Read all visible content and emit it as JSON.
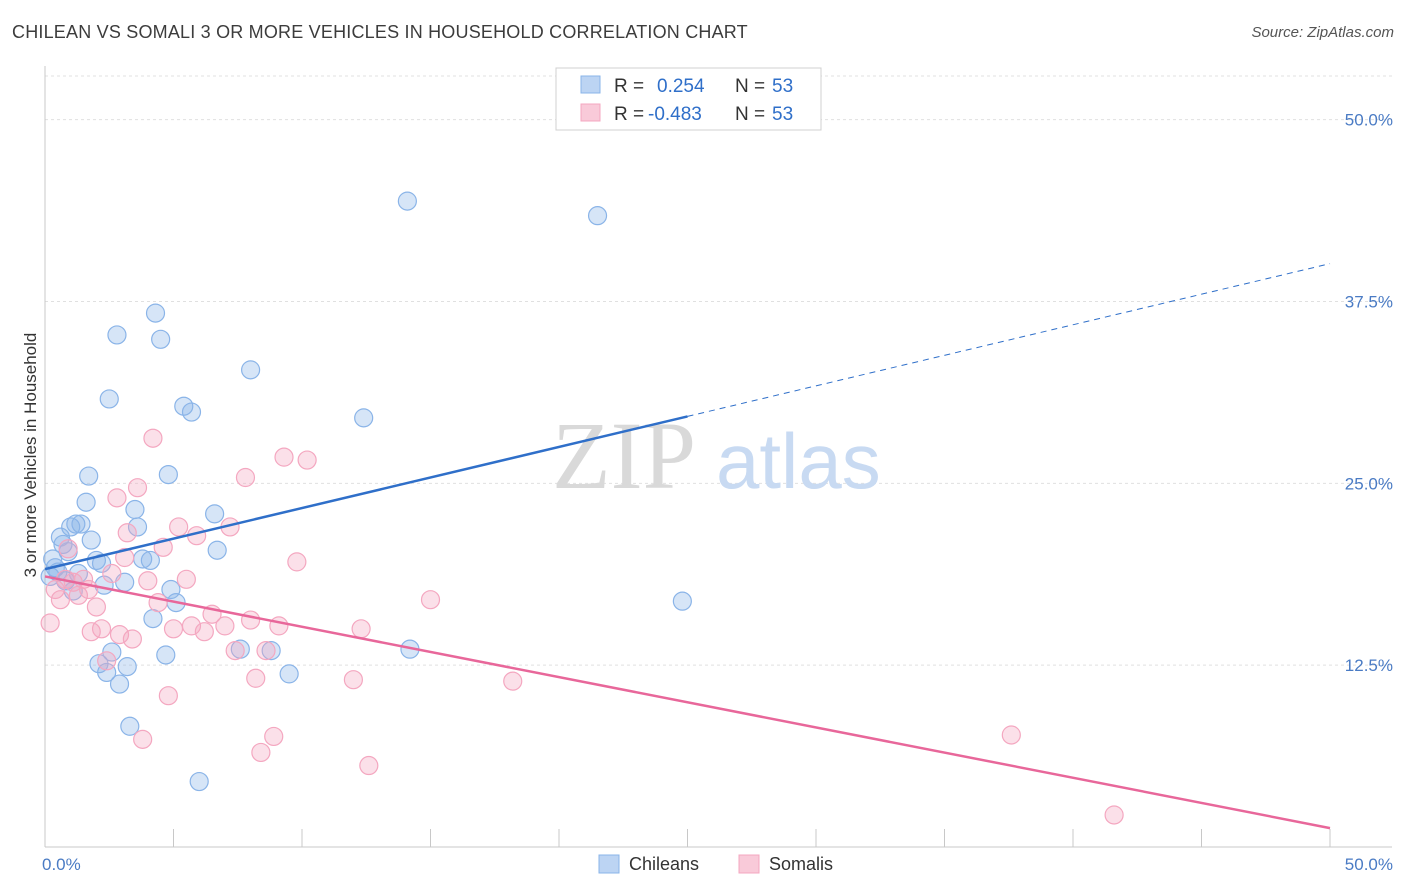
{
  "title": "CHILEAN VS SOMALI 3 OR MORE VEHICLES IN HOUSEHOLD CORRELATION CHART",
  "source": "Source: ZipAtlas.com",
  "watermark": {
    "zip": "ZIP",
    "atlas": "atlas"
  },
  "chart_data": {
    "type": "scatter",
    "ylabel": "3 or more Vehicles in Household",
    "xlim": [
      0,
      50
    ],
    "ylim": [
      0,
      53
    ],
    "x_tick_labels": [
      "0.0%",
      "50.0%"
    ],
    "y_ticks": [
      12.5,
      25.0,
      37.5,
      50.0
    ],
    "y_tick_labels": [
      "12.5%",
      "25.0%",
      "37.5%",
      "50.0%"
    ],
    "grid": true,
    "legend_placement": "top-center",
    "stats": [
      {
        "r_label": "R =",
        "r_value": "0.254",
        "n_label": "N =",
        "n_value": "53"
      },
      {
        "r_label": "R =",
        "r_value": "-0.483",
        "n_label": "N =",
        "n_value": "53"
      }
    ],
    "series": [
      {
        "name": "Chileans",
        "color": "#8ab4e8",
        "line_color": "#2f6fc9",
        "trend": {
          "x0": 0,
          "y0": 19.1,
          "x1": 25,
          "y1": 29.6,
          "x_dashed_end": 50,
          "y_dashed_end": 40.1
        },
        "points": [
          [
            0.3,
            19.8
          ],
          [
            0.4,
            19.2
          ],
          [
            0.5,
            18.9
          ],
          [
            0.6,
            21.3
          ],
          [
            0.7,
            20.8
          ],
          [
            0.8,
            18.3
          ],
          [
            0.9,
            20.3
          ],
          [
            1.0,
            22.0
          ],
          [
            1.1,
            17.6
          ],
          [
            1.2,
            22.2
          ],
          [
            1.3,
            18.8
          ],
          [
            1.4,
            22.2
          ],
          [
            1.6,
            23.7
          ],
          [
            1.7,
            25.5
          ],
          [
            1.8,
            21.1
          ],
          [
            2.0,
            19.7
          ],
          [
            2.1,
            12.6
          ],
          [
            2.2,
            19.5
          ],
          [
            2.3,
            18.0
          ],
          [
            2.4,
            12.0
          ],
          [
            2.5,
            30.8
          ],
          [
            2.6,
            13.4
          ],
          [
            2.8,
            35.2
          ],
          [
            2.9,
            11.2
          ],
          [
            3.1,
            18.2
          ],
          [
            3.2,
            12.4
          ],
          [
            3.3,
            8.3
          ],
          [
            3.5,
            23.2
          ],
          [
            3.6,
            22.0
          ],
          [
            3.8,
            19.8
          ],
          [
            4.1,
            19.7
          ],
          [
            4.2,
            15.7
          ],
          [
            4.3,
            36.7
          ],
          [
            4.5,
            34.9
          ],
          [
            4.7,
            13.2
          ],
          [
            4.8,
            25.6
          ],
          [
            4.9,
            17.7
          ],
          [
            5.1,
            16.8
          ],
          [
            5.4,
            30.3
          ],
          [
            5.7,
            29.9
          ],
          [
            6.0,
            4.5
          ],
          [
            6.6,
            22.9
          ],
          [
            6.7,
            20.4
          ],
          [
            7.6,
            13.6
          ],
          [
            8.0,
            32.8
          ],
          [
            8.8,
            13.5
          ],
          [
            9.5,
            11.9
          ],
          [
            12.4,
            29.5
          ],
          [
            14.1,
            44.4
          ],
          [
            14.2,
            13.6
          ],
          [
            21.5,
            43.4
          ],
          [
            24.8,
            16.9
          ],
          [
            0.2,
            18.6
          ]
        ]
      },
      {
        "name": "Somalis",
        "color": "#f4a7c0",
        "line_color": "#e8679a",
        "trend": {
          "x0": 0,
          "y0": 18.6,
          "x1": 50,
          "y1": 1.3
        },
        "points": [
          [
            0.2,
            15.4
          ],
          [
            0.4,
            17.7
          ],
          [
            0.6,
            17.0
          ],
          [
            0.8,
            18.4
          ],
          [
            0.9,
            20.5
          ],
          [
            1.1,
            18.2
          ],
          [
            1.3,
            17.3
          ],
          [
            1.5,
            18.4
          ],
          [
            1.7,
            17.7
          ],
          [
            1.8,
            14.8
          ],
          [
            2.0,
            16.5
          ],
          [
            2.2,
            15.0
          ],
          [
            2.4,
            12.8
          ],
          [
            2.6,
            18.8
          ],
          [
            2.8,
            24.0
          ],
          [
            2.9,
            14.6
          ],
          [
            3.1,
            19.9
          ],
          [
            3.2,
            21.6
          ],
          [
            3.4,
            14.3
          ],
          [
            3.6,
            24.7
          ],
          [
            3.8,
            7.4
          ],
          [
            4.0,
            18.3
          ],
          [
            4.2,
            28.1
          ],
          [
            4.4,
            16.8
          ],
          [
            4.6,
            20.6
          ],
          [
            4.8,
            10.4
          ],
          [
            5.0,
            15.0
          ],
          [
            5.2,
            22.0
          ],
          [
            5.5,
            18.4
          ],
          [
            5.7,
            15.2
          ],
          [
            5.9,
            21.4
          ],
          [
            6.2,
            14.8
          ],
          [
            6.5,
            16.0
          ],
          [
            7.0,
            15.2
          ],
          [
            7.2,
            22.0
          ],
          [
            7.4,
            13.5
          ],
          [
            7.8,
            25.4
          ],
          [
            8.0,
            15.6
          ],
          [
            8.2,
            11.6
          ],
          [
            8.4,
            6.5
          ],
          [
            8.6,
            13.5
          ],
          [
            8.9,
            7.6
          ],
          [
            9.1,
            15.2
          ],
          [
            9.3,
            26.8
          ],
          [
            9.8,
            19.6
          ],
          [
            10.2,
            26.6
          ],
          [
            12.0,
            11.5
          ],
          [
            12.3,
            15.0
          ],
          [
            12.6,
            5.6
          ],
          [
            15.0,
            17.0
          ],
          [
            18.2,
            11.4
          ],
          [
            37.6,
            7.7
          ],
          [
            41.6,
            2.2
          ]
        ]
      }
    ]
  }
}
